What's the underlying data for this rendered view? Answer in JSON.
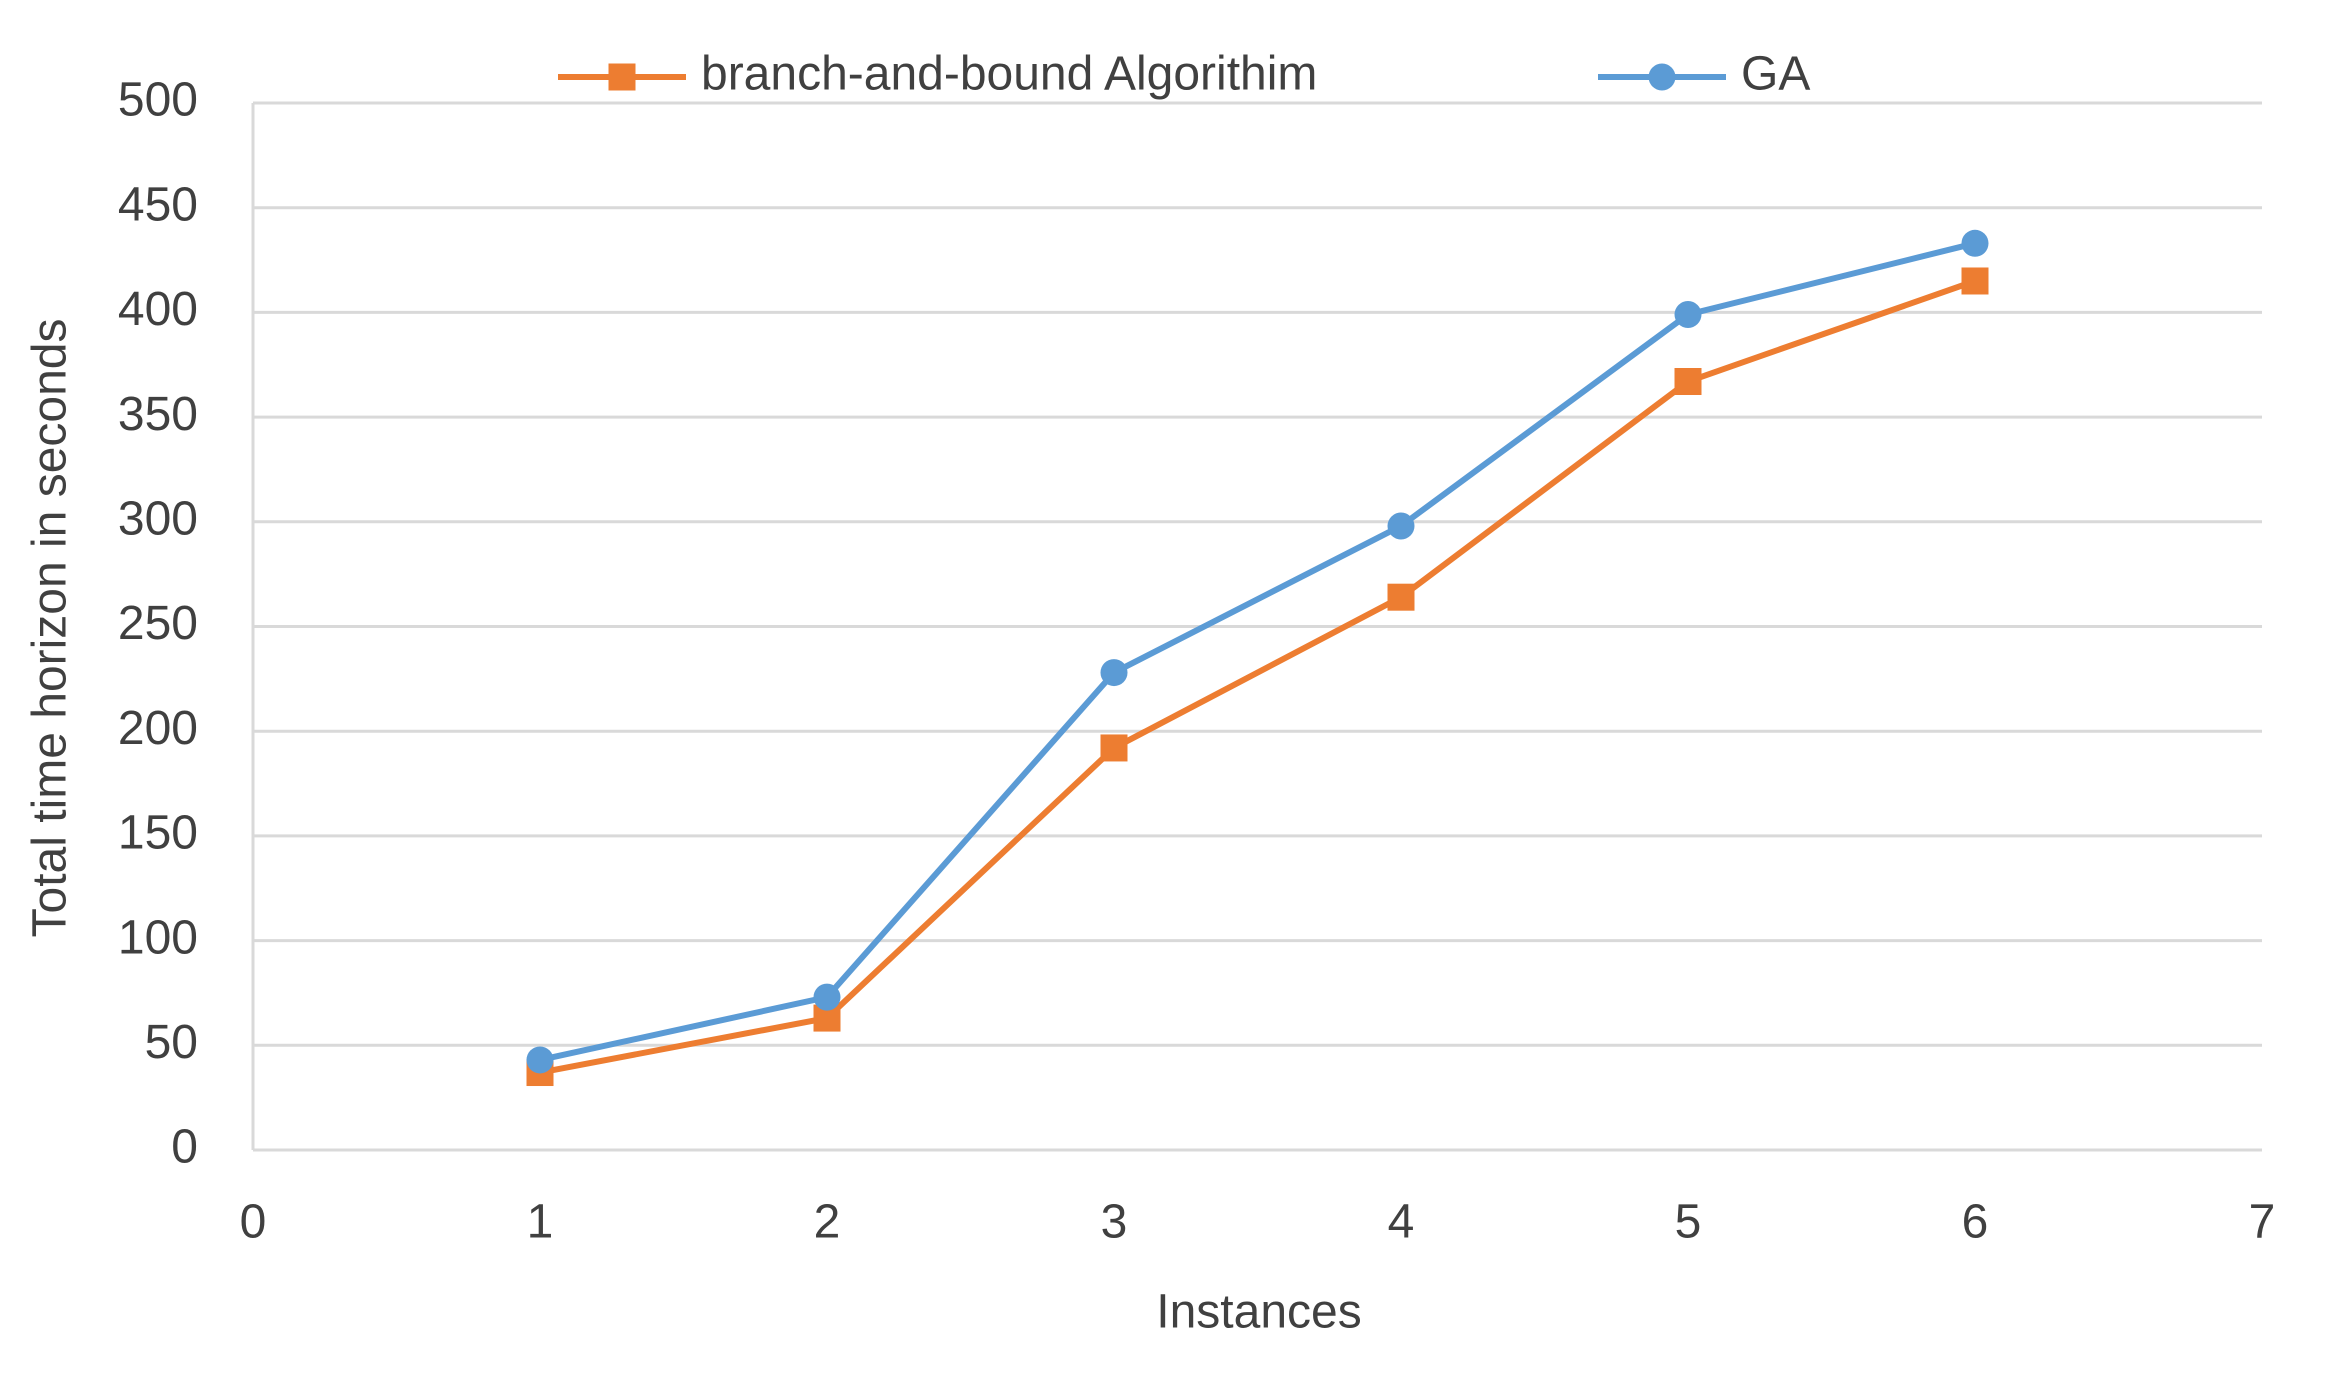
{
  "chart_data": {
    "type": "line",
    "x_label": "Instances",
    "y_label": "Total time horizon in seconds",
    "x": [
      1,
      2,
      3,
      4,
      5,
      6
    ],
    "series": [
      {
        "name": "branch-and-bound Algorithim",
        "color": "#ed7d31",
        "marker": "square",
        "values": [
          37,
          63,
          192,
          264,
          367,
          415
        ]
      },
      {
        "name": "GA",
        "color": "#5b9bd5",
        "marker": "circle",
        "values": [
          43,
          73,
          228,
          298,
          399,
          433
        ]
      }
    ],
    "xlim": [
      0,
      7
    ],
    "xticks": [
      0,
      1,
      2,
      3,
      4,
      5,
      6,
      7
    ],
    "ylim": [
      0,
      500
    ],
    "yticks": [
      0,
      50,
      100,
      150,
      200,
      250,
      300,
      350,
      400,
      450,
      500
    ],
    "grid": true,
    "legend": "top"
  }
}
